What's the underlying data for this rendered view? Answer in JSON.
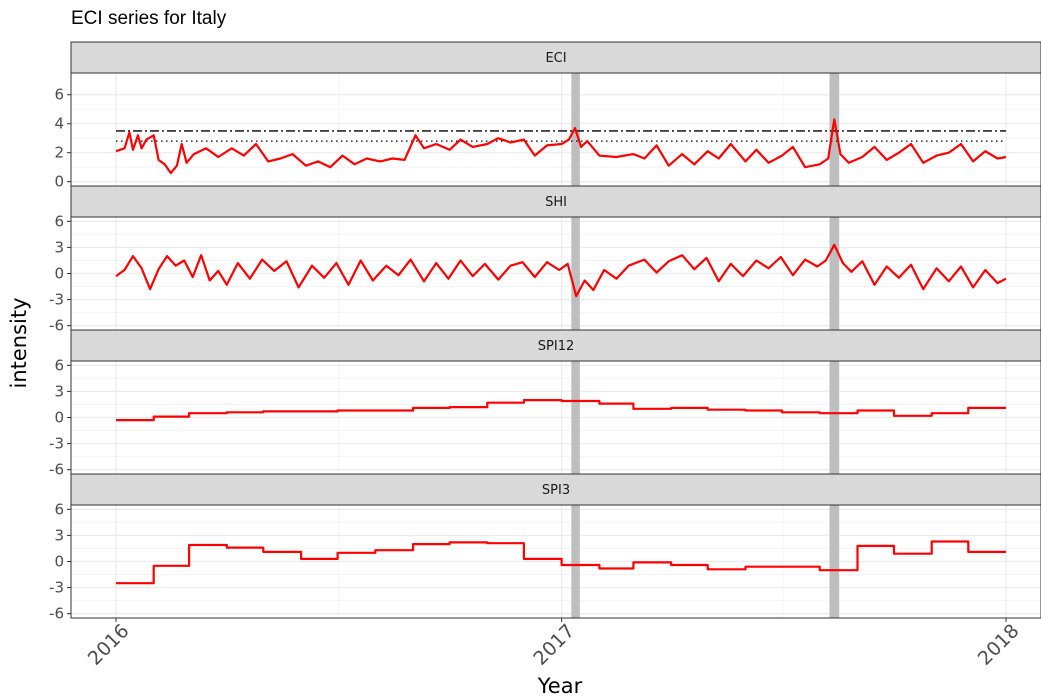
{
  "chart_data": {
    "type": "line",
    "title": "ECI series for Italy",
    "xlabel": "Year",
    "ylabel": "intensity",
    "x_ticks": [
      "2016",
      "2017",
      "2018"
    ],
    "xlim": [
      "2016-01-01",
      "2018-01-01"
    ],
    "grid": true,
    "legend": "none",
    "colors": {
      "line": "#ff0000",
      "event_band": "#bebebe",
      "strip_fill": "#d9d9d9",
      "threshold": "#000000"
    },
    "event_bands": [
      {
        "start": "2017-01-09",
        "end": "2017-01-16"
      },
      {
        "start": "2017-08-09",
        "end": "2017-08-17"
      }
    ],
    "panels": [
      {
        "strip": "ECI",
        "ylim": [
          -0.3,
          7.5
        ],
        "y_ticks": [
          0,
          2,
          4,
          6
        ],
        "thresholds": [
          {
            "value": 3.5,
            "style": "dashdot"
          },
          {
            "value": 2.8,
            "style": "dotted"
          }
        ],
        "points": [
          [
            "2016-01-01",
            2.1
          ],
          [
            "2016-01-08",
            2.3
          ],
          [
            "2016-01-12",
            3.4
          ],
          [
            "2016-01-15",
            2.2
          ],
          [
            "2016-01-19",
            3.2
          ],
          [
            "2016-01-22",
            2.3
          ],
          [
            "2016-01-26",
            2.9
          ],
          [
            "2016-02-01",
            3.2
          ],
          [
            "2016-02-05",
            1.5
          ],
          [
            "2016-02-10",
            1.2
          ],
          [
            "2016-02-15",
            0.6
          ],
          [
            "2016-02-20",
            1.1
          ],
          [
            "2016-02-24",
            2.6
          ],
          [
            "2016-02-28",
            1.3
          ],
          [
            "2016-03-05",
            1.9
          ],
          [
            "2016-03-15",
            2.3
          ],
          [
            "2016-03-25",
            1.7
          ],
          [
            "2016-04-05",
            2.3
          ],
          [
            "2016-04-15",
            1.8
          ],
          [
            "2016-04-25",
            2.6
          ],
          [
            "2016-05-05",
            1.4
          ],
          [
            "2016-05-15",
            1.6
          ],
          [
            "2016-05-25",
            1.9
          ],
          [
            "2016-06-05",
            1.1
          ],
          [
            "2016-06-15",
            1.4
          ],
          [
            "2016-06-25",
            1.0
          ],
          [
            "2016-07-05",
            1.8
          ],
          [
            "2016-07-15",
            1.2
          ],
          [
            "2016-07-25",
            1.6
          ],
          [
            "2016-08-05",
            1.4
          ],
          [
            "2016-08-15",
            1.6
          ],
          [
            "2016-08-25",
            1.5
          ],
          [
            "2016-09-03",
            3.2
          ],
          [
            "2016-09-10",
            2.3
          ],
          [
            "2016-09-20",
            2.6
          ],
          [
            "2016-10-01",
            2.2
          ],
          [
            "2016-10-10",
            2.9
          ],
          [
            "2016-10-20",
            2.4
          ],
          [
            "2016-11-01",
            2.6
          ],
          [
            "2016-11-10",
            3.0
          ],
          [
            "2016-11-20",
            2.7
          ],
          [
            "2016-12-01",
            2.9
          ],
          [
            "2016-12-10",
            1.8
          ],
          [
            "2016-12-20",
            2.5
          ],
          [
            "2017-01-01",
            2.6
          ],
          [
            "2017-01-07",
            2.9
          ],
          [
            "2017-01-12",
            3.7
          ],
          [
            "2017-01-17",
            2.4
          ],
          [
            "2017-01-22",
            2.8
          ],
          [
            "2017-02-01",
            1.8
          ],
          [
            "2017-02-15",
            1.7
          ],
          [
            "2017-03-01",
            1.9
          ],
          [
            "2017-03-10",
            1.6
          ],
          [
            "2017-03-20",
            2.5
          ],
          [
            "2017-03-30",
            1.1
          ],
          [
            "2017-04-10",
            1.9
          ],
          [
            "2017-04-20",
            1.2
          ],
          [
            "2017-05-01",
            2.1
          ],
          [
            "2017-05-10",
            1.6
          ],
          [
            "2017-05-20",
            2.6
          ],
          [
            "2017-06-01",
            1.4
          ],
          [
            "2017-06-10",
            2.2
          ],
          [
            "2017-06-20",
            1.3
          ],
          [
            "2017-07-01",
            1.8
          ],
          [
            "2017-07-10",
            2.4
          ],
          [
            "2017-07-20",
            1.0
          ],
          [
            "2017-08-01",
            1.2
          ],
          [
            "2017-08-08",
            1.6
          ],
          [
            "2017-08-13",
            4.3
          ],
          [
            "2017-08-18",
            1.9
          ],
          [
            "2017-08-25",
            1.3
          ],
          [
            "2017-09-05",
            1.7
          ],
          [
            "2017-09-15",
            2.4
          ],
          [
            "2017-09-25",
            1.5
          ],
          [
            "2017-10-05",
            2.0
          ],
          [
            "2017-10-15",
            2.6
          ],
          [
            "2017-10-25",
            1.3
          ],
          [
            "2017-11-05",
            1.8
          ],
          [
            "2017-11-15",
            2.0
          ],
          [
            "2017-11-25",
            2.6
          ],
          [
            "2017-12-05",
            1.4
          ],
          [
            "2017-12-15",
            2.1
          ],
          [
            "2017-12-25",
            1.6
          ],
          [
            "2018-01-01",
            1.7
          ]
        ]
      },
      {
        "strip": "SHI",
        "ylim": [
          -6.5,
          6.5
        ],
        "y_ticks": [
          -6,
          -3,
          0,
          3,
          6
        ],
        "points": [
          [
            "2016-01-01",
            -0.3
          ],
          [
            "2016-01-08",
            0.4
          ],
          [
            "2016-01-15",
            2.0
          ],
          [
            "2016-01-22",
            0.6
          ],
          [
            "2016-01-29",
            -1.8
          ],
          [
            "2016-02-05",
            0.5
          ],
          [
            "2016-02-12",
            2.0
          ],
          [
            "2016-02-19",
            0.9
          ],
          [
            "2016-02-26",
            1.5
          ],
          [
            "2016-03-04",
            -0.4
          ],
          [
            "2016-03-11",
            2.1
          ],
          [
            "2016-03-18",
            -0.8
          ],
          [
            "2016-03-25",
            0.3
          ],
          [
            "2016-04-01",
            -1.3
          ],
          [
            "2016-04-10",
            1.2
          ],
          [
            "2016-04-20",
            -0.6
          ],
          [
            "2016-04-30",
            1.6
          ],
          [
            "2016-05-10",
            0.3
          ],
          [
            "2016-05-20",
            1.4
          ],
          [
            "2016-05-30",
            -1.6
          ],
          [
            "2016-06-10",
            0.9
          ],
          [
            "2016-06-20",
            -0.5
          ],
          [
            "2016-06-30",
            1.2
          ],
          [
            "2016-07-10",
            -1.3
          ],
          [
            "2016-07-20",
            1.5
          ],
          [
            "2016-07-30",
            -0.8
          ],
          [
            "2016-08-10",
            0.9
          ],
          [
            "2016-08-20",
            -0.2
          ],
          [
            "2016-08-30",
            1.6
          ],
          [
            "2016-09-10",
            -0.9
          ],
          [
            "2016-09-20",
            1.2
          ],
          [
            "2016-09-30",
            -0.6
          ],
          [
            "2016-10-10",
            1.5
          ],
          [
            "2016-10-20",
            -0.3
          ],
          [
            "2016-10-30",
            1.1
          ],
          [
            "2016-11-10",
            -0.7
          ],
          [
            "2016-11-20",
            0.9
          ],
          [
            "2016-11-30",
            1.3
          ],
          [
            "2016-12-10",
            -0.4
          ],
          [
            "2016-12-20",
            1.3
          ],
          [
            "2016-12-30",
            0.4
          ],
          [
            "2017-01-06",
            1.1
          ],
          [
            "2017-01-13",
            -2.6
          ],
          [
            "2017-01-20",
            -0.8
          ],
          [
            "2017-01-27",
            -1.9
          ],
          [
            "2017-02-05",
            0.4
          ],
          [
            "2017-02-15",
            -0.6
          ],
          [
            "2017-02-25",
            0.9
          ],
          [
            "2017-03-10",
            1.6
          ],
          [
            "2017-03-20",
            0.1
          ],
          [
            "2017-03-30",
            1.4
          ],
          [
            "2017-04-10",
            2.1
          ],
          [
            "2017-04-20",
            0.5
          ],
          [
            "2017-04-30",
            1.8
          ],
          [
            "2017-05-10",
            -0.9
          ],
          [
            "2017-05-20",
            1.1
          ],
          [
            "2017-05-30",
            -0.3
          ],
          [
            "2017-06-10",
            1.5
          ],
          [
            "2017-06-20",
            0.6
          ],
          [
            "2017-06-30",
            1.9
          ],
          [
            "2017-07-10",
            -0.2
          ],
          [
            "2017-07-20",
            1.6
          ],
          [
            "2017-07-30",
            0.8
          ],
          [
            "2017-08-06",
            1.5
          ],
          [
            "2017-08-13",
            3.3
          ],
          [
            "2017-08-20",
            1.2
          ],
          [
            "2017-08-27",
            0.2
          ],
          [
            "2017-09-05",
            1.4
          ],
          [
            "2017-09-15",
            -1.3
          ],
          [
            "2017-09-25",
            0.8
          ],
          [
            "2017-10-05",
            -0.5
          ],
          [
            "2017-10-15",
            1.0
          ],
          [
            "2017-10-25",
            -1.8
          ],
          [
            "2017-11-05",
            0.6
          ],
          [
            "2017-11-15",
            -0.9
          ],
          [
            "2017-11-25",
            0.8
          ],
          [
            "2017-12-05",
            -1.6
          ],
          [
            "2017-12-15",
            0.4
          ],
          [
            "2017-12-25",
            -1.1
          ],
          [
            "2018-01-01",
            -0.6
          ]
        ]
      },
      {
        "strip": "SPI12",
        "ylim": [
          -6.5,
          6.5
        ],
        "y_ticks": [
          -6,
          -3,
          0,
          3,
          6
        ],
        "step": true,
        "points": [
          [
            "2016-01-01",
            -0.3
          ],
          [
            "2016-02-01",
            0.1
          ],
          [
            "2016-03-01",
            0.5
          ],
          [
            "2016-04-01",
            0.6
          ],
          [
            "2016-05-01",
            0.7
          ],
          [
            "2016-06-01",
            0.7
          ],
          [
            "2016-07-01",
            0.8
          ],
          [
            "2016-08-01",
            0.8
          ],
          [
            "2016-09-01",
            1.1
          ],
          [
            "2016-10-01",
            1.2
          ],
          [
            "2016-11-01",
            1.7
          ],
          [
            "2016-12-01",
            2.0
          ],
          [
            "2017-01-01",
            1.9
          ],
          [
            "2017-02-01",
            1.6
          ],
          [
            "2017-03-01",
            1.0
          ],
          [
            "2017-04-01",
            1.1
          ],
          [
            "2017-05-01",
            0.9
          ],
          [
            "2017-06-01",
            0.8
          ],
          [
            "2017-07-01",
            0.6
          ],
          [
            "2017-08-01",
            0.5
          ],
          [
            "2017-09-01",
            0.8
          ],
          [
            "2017-10-01",
            0.2
          ],
          [
            "2017-11-01",
            0.5
          ],
          [
            "2017-12-01",
            1.1
          ],
          [
            "2018-01-01",
            1.1
          ]
        ]
      },
      {
        "strip": "SPI3",
        "ylim": [
          -6.5,
          6.5
        ],
        "y_ticks": [
          -6,
          -3,
          0,
          3,
          6
        ],
        "step": true,
        "points": [
          [
            "2016-01-01",
            -2.5
          ],
          [
            "2016-02-01",
            -0.5
          ],
          [
            "2016-03-01",
            1.9
          ],
          [
            "2016-04-01",
            1.6
          ],
          [
            "2016-05-01",
            1.1
          ],
          [
            "2016-06-01",
            0.3
          ],
          [
            "2016-07-01",
            1.0
          ],
          [
            "2016-08-01",
            1.3
          ],
          [
            "2016-09-01",
            2.0
          ],
          [
            "2016-10-01",
            2.2
          ],
          [
            "2016-11-01",
            2.1
          ],
          [
            "2016-12-01",
            0.3
          ],
          [
            "2017-01-01",
            -0.4
          ],
          [
            "2017-02-01",
            -0.8
          ],
          [
            "2017-03-01",
            -0.1
          ],
          [
            "2017-04-01",
            -0.4
          ],
          [
            "2017-05-01",
            -0.9
          ],
          [
            "2017-06-01",
            -0.6
          ],
          [
            "2017-07-01",
            -0.6
          ],
          [
            "2017-08-01",
            -1.0
          ],
          [
            "2017-09-01",
            1.8
          ],
          [
            "2017-10-01",
            0.9
          ],
          [
            "2017-11-01",
            2.3
          ],
          [
            "2017-12-01",
            1.1
          ],
          [
            "2018-01-01",
            1.1
          ]
        ]
      }
    ]
  }
}
